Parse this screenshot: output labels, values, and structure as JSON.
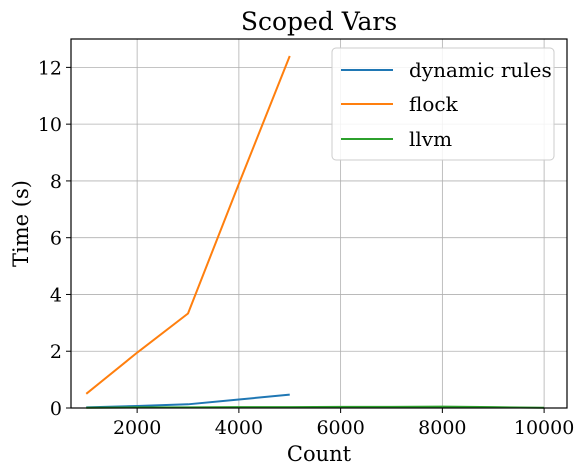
{
  "chart_data": {
    "type": "line",
    "title": "Scoped Vars",
    "xlabel": "Count",
    "ylabel": "Time (s)",
    "xlim": [
      700,
      10450
    ],
    "ylim": [
      0,
      13
    ],
    "xticks": [
      2000,
      4000,
      6000,
      8000,
      10000
    ],
    "yticks": [
      0,
      2,
      4,
      6,
      8,
      10,
      12
    ],
    "grid": true,
    "legend_position": "top-right",
    "series": [
      {
        "name": "dynamic rules",
        "color": "#1f77b4",
        "x": [
          1000,
          2000,
          3000,
          4000,
          5000
        ],
        "y": [
          0.02,
          0.07,
          0.13,
          0.3,
          0.47
        ]
      },
      {
        "name": "flock",
        "color": "#ff7f0e",
        "x": [
          1000,
          2000,
          3000,
          4000,
          5000
        ],
        "y": [
          0.5,
          1.95,
          3.33,
          7.9,
          12.4
        ]
      },
      {
        "name": "llvm",
        "color": "#2ca02c",
        "x": [
          1000,
          2000,
          3000,
          4000,
          5000,
          6000,
          7000,
          8000,
          9000,
          10000
        ],
        "y": [
          0.01,
          0.02,
          0.02,
          0.03,
          0.03,
          0.04,
          0.04,
          0.05,
          0.03,
          0.01
        ]
      }
    ]
  }
}
